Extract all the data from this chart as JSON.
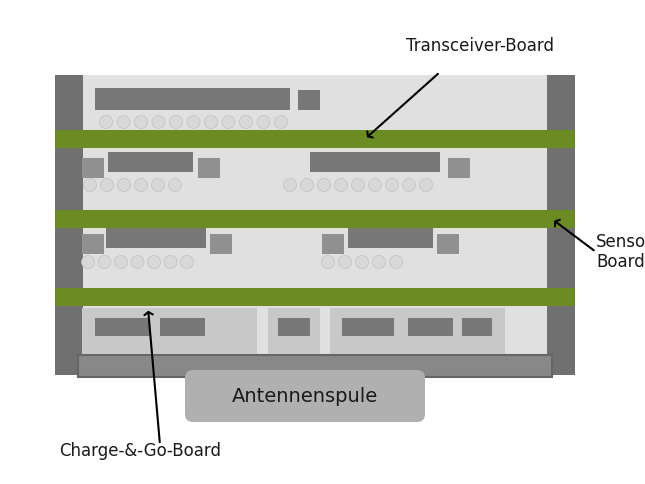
{
  "bg_color": "#ffffff",
  "green_color": "#6b8c23",
  "dk_gray": "#606060",
  "mid_gray": "#909090",
  "lt_gray": "#c8c8c8",
  "ltr_gray": "#e0e0e0",
  "pillar_gray": "#707070",
  "base_gray": "#888888",
  "chip_gray": "#787878",
  "solder_color": "#d8d8d8",
  "ant_fill": "#b0b0b0",
  "text_color": "#1a1a1a",
  "labels": {
    "transceiver": "Transceiver-Board",
    "sensor": "Sensor-\nBoard",
    "charge": "Charge-&-Go-Board",
    "antenna": "Antennenspule"
  },
  "fig_width": 6.45,
  "fig_height": 4.84,
  "dpi": 100
}
